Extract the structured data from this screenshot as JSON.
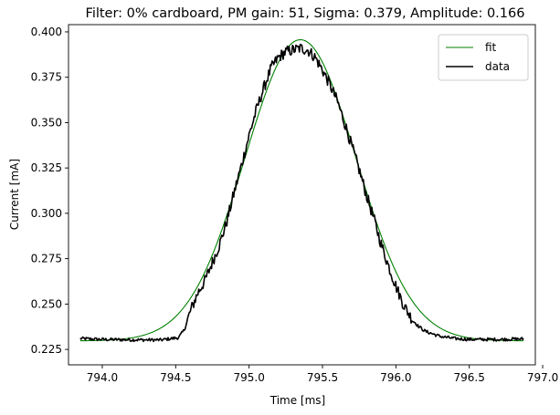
{
  "chart_data": {
    "type": "line",
    "title": "Filter: 0% cardboard, PM gain: 51, Sigma: 0.379, Amplitude: 0.166",
    "xlabel": "Time [ms]",
    "ylabel": "Current [mA]",
    "xlim": [
      793.77,
      796.95
    ],
    "ylim": [
      0.2165,
      0.404
    ],
    "xticks": [
      794.0,
      794.5,
      795.0,
      795.5,
      796.0,
      796.5,
      797.0
    ],
    "xtick_labels": [
      "794.0",
      "794.5",
      "795.0",
      "795.5",
      "796.0",
      "796.5",
      "797.0"
    ],
    "yticks": [
      0.225,
      0.25,
      0.275,
      0.3,
      0.325,
      0.35,
      0.375,
      0.4
    ],
    "ytick_labels": [
      "0.225",
      "0.250",
      "0.275",
      "0.300",
      "0.325",
      "0.350",
      "0.375",
      "0.400"
    ],
    "grid": false,
    "legend_position": "top-right",
    "series": [
      {
        "name": "fit",
        "color": "#008000",
        "kind": "gaussian",
        "params": {
          "center": 795.35,
          "sigma": 0.379,
          "amplitude": 0.166,
          "offset": 0.2297
        },
        "x_range": [
          793.85,
          796.87
        ]
      },
      {
        "name": "data",
        "color": "#000000",
        "x": [
          793.85,
          794.0,
          794.2,
          794.4,
          794.52,
          794.56,
          794.6,
          794.65,
          794.7,
          794.75,
          794.8,
          794.85,
          794.9,
          794.95,
          795.0,
          795.05,
          795.1,
          795.15,
          795.2,
          795.25,
          795.3,
          795.35,
          795.4,
          795.45,
          795.5,
          795.55,
          795.6,
          795.65,
          795.7,
          795.75,
          795.8,
          795.85,
          795.9,
          795.95,
          796.0,
          796.05,
          796.1,
          796.15,
          796.2,
          796.3,
          796.4,
          796.5,
          796.6,
          796.7,
          796.87
        ],
        "y": [
          0.231,
          0.2305,
          0.2303,
          0.2302,
          0.2315,
          0.236,
          0.246,
          0.256,
          0.263,
          0.273,
          0.283,
          0.296,
          0.312,
          0.327,
          0.343,
          0.357,
          0.369,
          0.38,
          0.386,
          0.389,
          0.39,
          0.391,
          0.39,
          0.386,
          0.379,
          0.371,
          0.362,
          0.35,
          0.337,
          0.324,
          0.31,
          0.297,
          0.283,
          0.271,
          0.26,
          0.25,
          0.243,
          0.238,
          0.235,
          0.2322,
          0.231,
          0.2305,
          0.2305,
          0.2305,
          0.2308
        ]
      }
    ]
  }
}
